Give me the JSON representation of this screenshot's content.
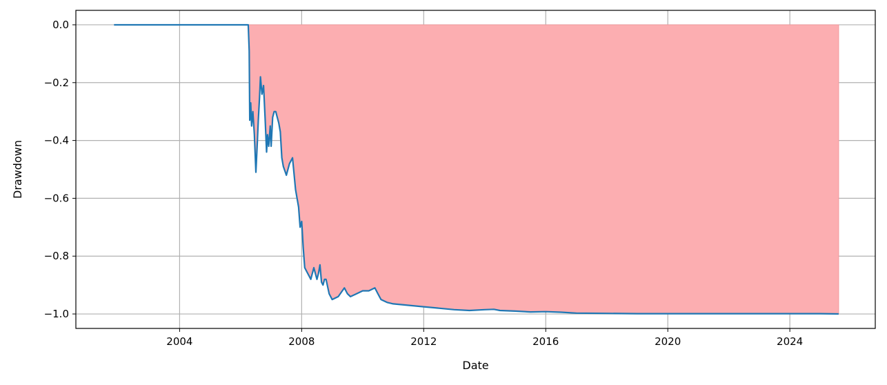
{
  "chart_data": {
    "type": "area",
    "title": "",
    "xlabel": "Date",
    "ylabel": "Drawdown",
    "xlim": [
      2000.6,
      2026.8
    ],
    "ylim": [
      -1.05,
      0.05
    ],
    "grid": true,
    "x_ticks": [
      2004,
      2008,
      2012,
      2016,
      2020,
      2024
    ],
    "x_tick_labels": [
      "2004",
      "2008",
      "2012",
      "2016",
      "2020",
      "2024"
    ],
    "y_ticks": [
      0.0,
      -0.2,
      -0.4,
      -0.6,
      -0.8,
      -1.0
    ],
    "y_tick_labels": [
      "0.0",
      "−0.2",
      "−0.4",
      "−0.6",
      "−0.8",
      "−1.0"
    ],
    "fill_color": "#fcaeb1",
    "fill_edge_color": "#f39a9d",
    "line_color": "#1f77b4",
    "series": [
      {
        "name": "Drawdown",
        "x": [
          2001.85,
          2006.0,
          2006.25,
          2006.28,
          2006.3,
          2006.33,
          2006.36,
          2006.4,
          2006.45,
          2006.5,
          2006.55,
          2006.58,
          2006.62,
          2006.65,
          2006.7,
          2006.75,
          2006.8,
          2006.85,
          2006.88,
          2006.92,
          2006.97,
          2007.0,
          2007.05,
          2007.1,
          2007.15,
          2007.2,
          2007.25,
          2007.3,
          2007.35,
          2007.4,
          2007.5,
          2007.6,
          2007.7,
          2007.8,
          2007.85,
          2007.9,
          2007.95,
          2008.0,
          2008.05,
          2008.1,
          2008.2,
          2008.3,
          2008.4,
          2008.5,
          2008.55,
          2008.6,
          2008.65,
          2008.7,
          2008.75,
          2008.8,
          2008.9,
          2009.0,
          2009.2,
          2009.4,
          2009.5,
          2009.6,
          2009.8,
          2010.0,
          2010.2,
          2010.4,
          2010.5,
          2010.6,
          2010.8,
          2011.0,
          2011.5,
          2012.0,
          2012.5,
          2013.0,
          2013.5,
          2014.0,
          2014.3,
          2014.5,
          2015.0,
          2015.5,
          2016.0,
          2016.5,
          2017.0,
          2018.0,
          2019.0,
          2020.0,
          2021.0,
          2022.0,
          2023.0,
          2024.0,
          2025.0,
          2025.6
        ],
        "y": [
          0.0,
          0.0,
          0.0,
          -0.09,
          -0.33,
          -0.27,
          -0.35,
          -0.3,
          -0.38,
          -0.51,
          -0.4,
          -0.33,
          -0.25,
          -0.18,
          -0.24,
          -0.21,
          -0.32,
          -0.44,
          -0.38,
          -0.42,
          -0.35,
          -0.42,
          -0.32,
          -0.3,
          -0.3,
          -0.32,
          -0.34,
          -0.37,
          -0.46,
          -0.49,
          -0.52,
          -0.48,
          -0.46,
          -0.57,
          -0.6,
          -0.63,
          -0.7,
          -0.68,
          -0.77,
          -0.84,
          -0.86,
          -0.88,
          -0.84,
          -0.88,
          -0.86,
          -0.83,
          -0.89,
          -0.9,
          -0.88,
          -0.88,
          -0.93,
          -0.95,
          -0.94,
          -0.91,
          -0.93,
          -0.94,
          -0.93,
          -0.92,
          -0.92,
          -0.91,
          -0.93,
          -0.95,
          -0.96,
          -0.965,
          -0.97,
          -0.975,
          -0.98,
          -0.985,
          -0.988,
          -0.985,
          -0.984,
          -0.988,
          -0.99,
          -0.993,
          -0.992,
          -0.994,
          -0.997,
          -0.998,
          -0.999,
          -0.999,
          -0.999,
          -0.999,
          -0.999,
          -0.999,
          -0.999,
          -1.0
        ]
      }
    ]
  }
}
